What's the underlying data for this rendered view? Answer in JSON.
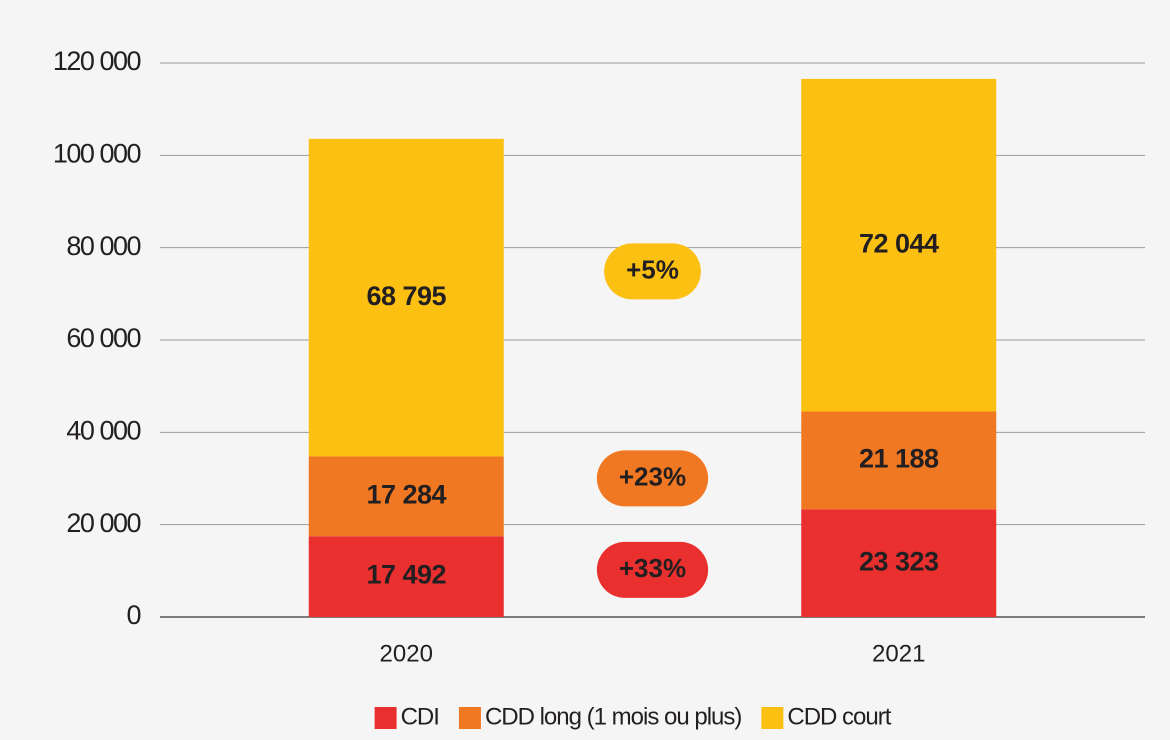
{
  "chart_data": {
    "type": "stacked_bar",
    "categories": [
      "2020",
      "2021"
    ],
    "series": [
      {
        "name": "CDI",
        "color": "#e9302f",
        "values": [
          17492,
          23323
        ],
        "value_labels": [
          "17 492",
          "23 323"
        ],
        "change": "+33%"
      },
      {
        "name": "CDD long (1 mois ou plus)",
        "color": "#f07823",
        "values": [
          17284,
          21188
        ],
        "value_labels": [
          "17 284",
          "21 188"
        ],
        "change": "+23%"
      },
      {
        "name": "CDD court",
        "color": "#fcc013",
        "values": [
          68795,
          72044
        ],
        "value_labels": [
          "68 795",
          "72 044"
        ],
        "change": "+5%"
      }
    ],
    "ylim": [
      0,
      120000
    ],
    "yticks": [
      0,
      {
        "value": 20000,
        "label": "20 000"
      },
      {
        "value": 40000,
        "label": "40 000"
      },
      {
        "value": 60000,
        "label": "60 000"
      },
      {
        "value": 80000,
        "label": "80 000"
      },
      {
        "value": 100000,
        "label": "100 000"
      },
      {
        "value": 120000,
        "label": "120 000"
      }
    ],
    "grid": true
  }
}
